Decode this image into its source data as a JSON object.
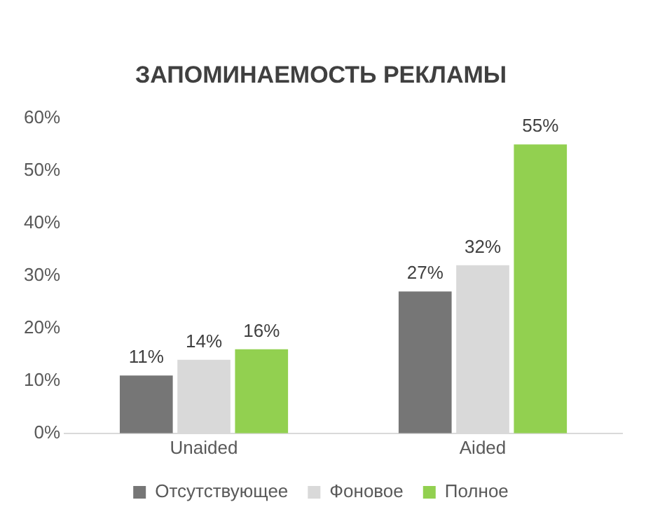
{
  "chart_data": {
    "type": "bar",
    "title": "ЗАПОМИНАЕМОСТЬ РЕКЛАМЫ",
    "categories": [
      "Unaided",
      "Aided"
    ],
    "series": [
      {
        "name": "Отсутствующее",
        "color": "#767676",
        "values": [
          11,
          27
        ],
        "value_labels": [
          "11%",
          "27%"
        ]
      },
      {
        "name": "Фоновое",
        "color": "#d9d9d9",
        "values": [
          14,
          32
        ],
        "value_labels": [
          "14%",
          "32%"
        ]
      },
      {
        "name": "Полное",
        "color": "#92d050",
        "values": [
          16,
          55
        ],
        "value_labels": [
          "16%",
          "55%"
        ]
      }
    ],
    "ylim": [
      0,
      60
    ],
    "yticks": [
      {
        "value": 0,
        "label": "0%"
      },
      {
        "value": 10,
        "label": "10%"
      },
      {
        "value": 20,
        "label": "20%"
      },
      {
        "value": 30,
        "label": "30%"
      },
      {
        "value": 40,
        "label": "40%"
      },
      {
        "value": 50,
        "label": "50%"
      },
      {
        "value": 60,
        "label": "60%"
      }
    ],
    "grid": false,
    "legend": "bottom"
  }
}
